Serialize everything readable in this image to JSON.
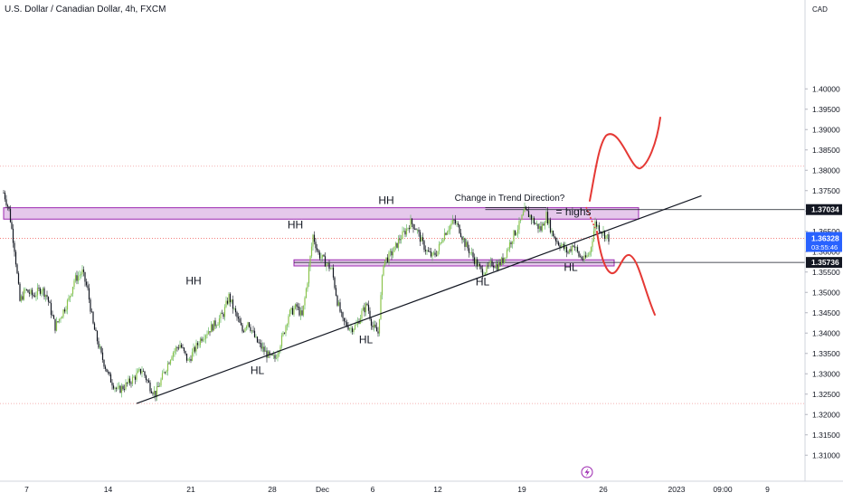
{
  "header": {
    "symbol_title": "U.S. Dollar / Canadian Dollar, 4h, FXCM",
    "currency": "CAD"
  },
  "chart_data": {
    "type": "candlestick",
    "title": "U.S. Dollar / Canadian Dollar, 4h, FXCM",
    "ylabel": "CAD",
    "ylim": [
      1.3065,
      1.4145
    ],
    "y_ticks": [
      "1.40000",
      "1.39500",
      "1.39000",
      "1.38500",
      "1.38000",
      "1.37500",
      "1.37000",
      "1.36500",
      "1.36000",
      "1.35500",
      "1.35000",
      "1.34500",
      "1.34000",
      "1.33500",
      "1.33000",
      "1.32500",
      "1.32000",
      "1.31500",
      "1.31000"
    ],
    "x_ticks": [
      "7",
      "14",
      "21",
      "28",
      "Dec",
      "6",
      "12",
      "19",
      "26",
      "2023",
      "09:00",
      "9"
    ],
    "price_labels": {
      "resistance": "1.37034",
      "current": "1.36328",
      "countdown": "03:55:46",
      "support": "1.35736"
    },
    "colors": {
      "up": "#26a69a",
      "down": "#131722",
      "accent": "#2962ff",
      "zone_fill": "#e1bee7",
      "zone_border": "#9c27b0",
      "projection": "#e53935"
    },
    "close_path": [
      [
        0,
        1.3745
      ],
      [
        4,
        1.3702
      ],
      [
        8,
        1.3608
      ],
      [
        12,
        1.3478
      ],
      [
        16,
        1.3505
      ],
      [
        22,
        1.3492
      ],
      [
        28,
        1.351
      ],
      [
        32,
        1.349
      ],
      [
        38,
        1.3415
      ],
      [
        44,
        1.3455
      ],
      [
        48,
        1.3482
      ],
      [
        52,
        1.353
      ],
      [
        58,
        1.355
      ],
      [
        62,
        1.3505
      ],
      [
        66,
        1.342
      ],
      [
        72,
        1.3345
      ],
      [
        78,
        1.329
      ],
      [
        84,
        1.3258
      ],
      [
        90,
        1.3272
      ],
      [
        96,
        1.329
      ],
      [
        102,
        1.331
      ],
      [
        108,
        1.3268
      ],
      [
        112,
        1.325
      ],
      [
        118,
        1.33
      ],
      [
        124,
        1.335
      ],
      [
        130,
        1.3372
      ],
      [
        136,
        1.333
      ],
      [
        140,
        1.3355
      ],
      [
        146,
        1.339
      ],
      [
        152,
        1.341
      ],
      [
        158,
        1.343
      ],
      [
        162,
        1.3448
      ],
      [
        166,
        1.349
      ],
      [
        170,
        1.3455
      ],
      [
        176,
        1.3405
      ],
      [
        180,
        1.343
      ],
      [
        186,
        1.3382
      ],
      [
        190,
        1.3365
      ],
      [
        196,
        1.334
      ],
      [
        200,
        1.3338
      ],
      [
        206,
        1.3395
      ],
      [
        210,
        1.3445
      ],
      [
        216,
        1.3465
      ],
      [
        220,
        1.344
      ],
      [
        224,
        1.353
      ],
      [
        228,
        1.364
      ],
      [
        232,
        1.3595
      ],
      [
        238,
        1.357
      ],
      [
        242,
        1.3555
      ],
      [
        246,
        1.3478
      ],
      [
        250,
        1.3428
      ],
      [
        256,
        1.3412
      ],
      [
        260,
        1.3418
      ],
      [
        264,
        1.345
      ],
      [
        268,
        1.347
      ],
      [
        272,
        1.3415
      ],
      [
        276,
        1.34
      ],
      [
        280,
        1.3575
      ],
      [
        284,
        1.3588
      ],
      [
        288,
        1.3605
      ],
      [
        292,
        1.3632
      ],
      [
        296,
        1.365
      ],
      [
        300,
        1.3672
      ],
      [
        304,
        1.3658
      ],
      [
        308,
        1.3625
      ],
      [
        312,
        1.36
      ],
      [
        316,
        1.3588
      ],
      [
        320,
        1.3602
      ],
      [
        324,
        1.364
      ],
      [
        328,
        1.366
      ],
      [
        332,
        1.3675
      ],
      [
        336,
        1.3655
      ],
      [
        340,
        1.362
      ],
      [
        344,
        1.3598
      ],
      [
        348,
        1.3575
      ],
      [
        352,
        1.3552
      ],
      [
        356,
        1.3555
      ],
      [
        360,
        1.3572
      ],
      [
        364,
        1.3565
      ],
      [
        368,
        1.358
      ],
      [
        372,
        1.3612
      ],
      [
        376,
        1.3642
      ],
      [
        380,
        1.3665
      ],
      [
        384,
        1.37
      ],
      [
        388,
        1.3688
      ],
      [
        392,
        1.3668
      ],
      [
        396,
        1.3655
      ],
      [
        400,
        1.369
      ],
      [
        404,
        1.3648
      ],
      [
        408,
        1.3625
      ],
      [
        412,
        1.3612
      ],
      [
        416,
        1.3598
      ],
      [
        420,
        1.362
      ],
      [
        424,
        1.359
      ],
      [
        428,
        1.358
      ],
      [
        432,
        1.3598
      ],
      [
        436,
        1.367
      ],
      [
        440,
        1.3655
      ],
      [
        444,
        1.3638
      ],
      [
        446,
        1.3633
      ]
    ],
    "horizontal_lines": [
      {
        "name": "upper-dotted-line",
        "value": 1.381
      },
      {
        "name": "resistance-line",
        "value": 1.37034
      },
      {
        "name": "current-price-line",
        "value": 1.36328
      },
      {
        "name": "support-line",
        "value": 1.35736
      },
      {
        "name": "lower-dotted-line",
        "value": 1.3227
      }
    ],
    "zones": [
      {
        "name": "resistance-zone",
        "start": 0,
        "end": 468,
        "low": 1.368,
        "high": 1.3708
      },
      {
        "name": "support-zone",
        "start": 214,
        "end": 450,
        "low": 1.3565,
        "high": 1.358
      }
    ],
    "trendline": {
      "from": [
        98,
        1.3227
      ],
      "to": [
        461,
        1.3672
      ]
    },
    "annotations": [
      {
        "name": "label-hh-1",
        "text": "HH",
        "bar": 140,
        "value": 1.352
      },
      {
        "name": "label-hh-2",
        "text": "HH",
        "bar": 215,
        "value": 1.3657
      },
      {
        "name": "label-hh-3",
        "text": "HH",
        "bar": 282,
        "value": 1.3717
      },
      {
        "name": "label-hl-1",
        "text": "HL",
        "bar": 187,
        "value": 1.3299
      },
      {
        "name": "label-hl-2",
        "text": "HL",
        "bar": 267,
        "value": 1.3375
      },
      {
        "name": "label-hl-3",
        "text": "HL",
        "bar": 353,
        "value": 1.3517
      },
      {
        "name": "label-hl-4",
        "text": "HL",
        "bar": 418,
        "value": 1.3553
      },
      {
        "name": "label-change-trend",
        "text": "Change in Trend Direction?",
        "bar": 373,
        "value": 1.3725
      },
      {
        "name": "label-equal-highs",
        "text": "= highs",
        "bar": 420,
        "value": 1.369
      }
    ]
  }
}
